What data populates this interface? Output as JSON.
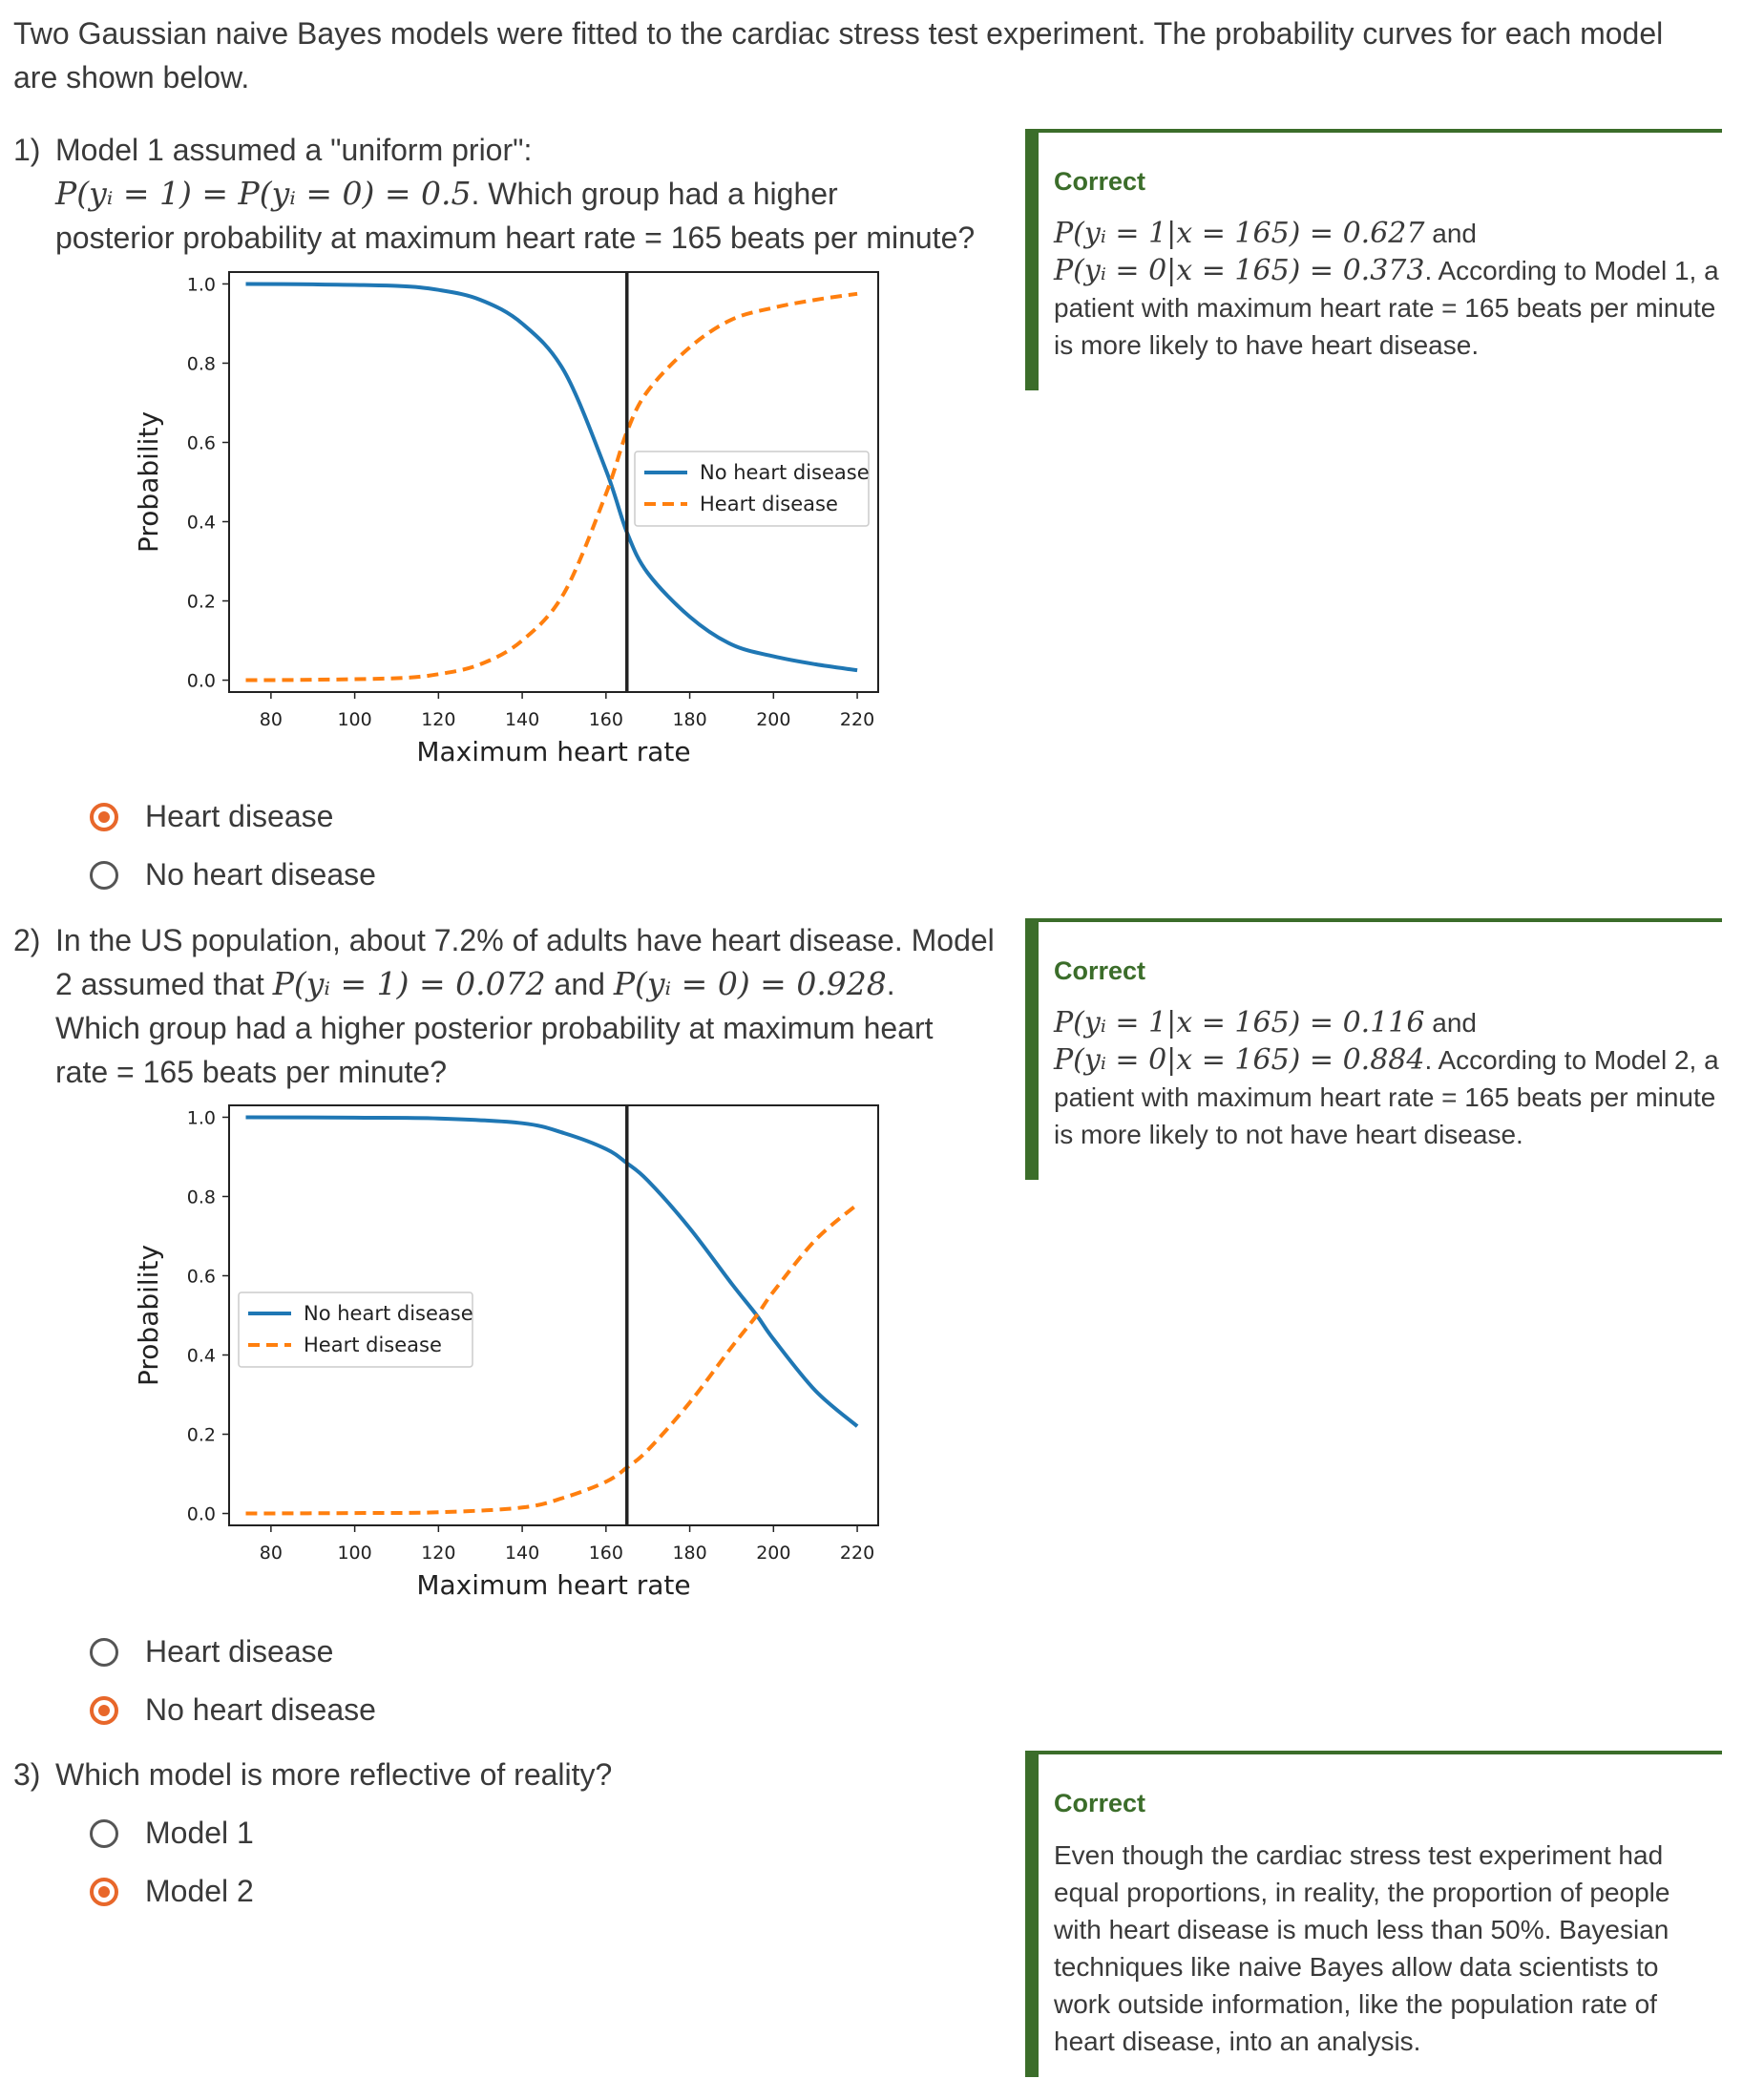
{
  "intro": "Two Gaussian naive Bayes models were fitted to the cardiac stress test experiment. The probability curves for each model are shown below.",
  "q1": {
    "number": "1)",
    "line1": "Model 1 assumed a \"uniform prior\":",
    "math1": "P(yᵢ = 1) = P(yᵢ = 0) = 0.5",
    "line2_rest": ". Which group had a higher",
    "line3": "posterior probability at maximum heart rate = 165 beats per minute?",
    "options": [
      {
        "label": "Heart disease",
        "selected": true
      },
      {
        "label": "No heart disease",
        "selected": false
      }
    ],
    "feedback": {
      "title": "Correct",
      "math_a": "P(yᵢ = 1|x = 165) = 0.627",
      "and": " and",
      "math_b": "P(yᵢ = 0|x = 165) = 0.373",
      "text": ". According to Model 1, a patient with maximum heart rate = 165 beats per minute is more likely to have heart disease."
    }
  },
  "q2": {
    "number": "2)",
    "line1": "In the US population, about 7.2% of adults have heart disease. Model",
    "line2_pre": "2 assumed that ",
    "math1": "P(yᵢ = 1) = 0.072",
    "and": " and ",
    "math2": "P(yᵢ = 0) = 0.928",
    "dot": ".",
    "line3": "Which group had a higher posterior probability at maximum heart",
    "line4": "rate = 165 beats per minute?",
    "options": [
      {
        "label": "Heart disease",
        "selected": false
      },
      {
        "label": "No heart disease",
        "selected": true
      }
    ],
    "feedback": {
      "title": "Correct",
      "math_a": "P(yᵢ = 1|x = 165) = 0.116",
      "and": " and",
      "math_b": "P(yᵢ = 0|x = 165) = 0.884",
      "text": ". According to Model 2, a patient with maximum heart rate = 165 beats per minute is more likely to not have heart disease."
    }
  },
  "q3": {
    "number": "3)",
    "line1": "Which model is more reflective of reality?",
    "options": [
      {
        "label": "Model 1",
        "selected": false
      },
      {
        "label": "Model 2",
        "selected": true
      }
    ],
    "feedback": {
      "title": "Correct",
      "text": "Even though the cardiac stress test experiment had equal proportions, in reality, the proportion of people with heart disease is much less than 50%. Bayesian techniques like naive Bayes allow data scientists to work outside information, like the population rate of heart disease, into an analysis."
    }
  },
  "colors": {
    "no_disease": "#1f77b4",
    "disease": "#ff7f0e",
    "correct": "#3b6d2a",
    "selected": "#e8672a"
  },
  "chart_data": [
    {
      "type": "line",
      "xlabel": "Maximum heart rate",
      "ylabel": "Probability",
      "xlim": [
        70,
        225
      ],
      "ylim": [
        -0.03,
        1.03
      ],
      "xticks": [
        80,
        100,
        120,
        140,
        160,
        180,
        200,
        220
      ],
      "yticks": [
        "0.0",
        "0.2",
        "0.4",
        "0.6",
        "0.8",
        "1.0"
      ],
      "vline": 165,
      "legend_position": "center-right",
      "x": [
        74,
        90,
        110,
        120,
        130,
        140,
        150,
        160,
        165,
        170,
        180,
        190,
        200,
        210,
        220
      ],
      "series": [
        {
          "name": "No heart disease",
          "style": "solid",
          "values": [
            1.0,
            0.999,
            0.995,
            0.985,
            0.96,
            0.9,
            0.78,
            0.53,
            0.373,
            0.27,
            0.16,
            0.09,
            0.06,
            0.04,
            0.025
          ]
        },
        {
          "name": "Heart disease",
          "style": "dashed",
          "values": [
            0.0,
            0.001,
            0.005,
            0.015,
            0.04,
            0.1,
            0.22,
            0.47,
            0.627,
            0.73,
            0.84,
            0.91,
            0.94,
            0.96,
            0.975
          ]
        }
      ]
    },
    {
      "type": "line",
      "xlabel": "Maximum heart rate",
      "ylabel": "Probability",
      "xlim": [
        70,
        225
      ],
      "ylim": [
        -0.03,
        1.03
      ],
      "xticks": [
        80,
        100,
        120,
        140,
        160,
        180,
        200,
        220
      ],
      "yticks": [
        "0.0",
        "0.2",
        "0.4",
        "0.6",
        "0.8",
        "1.0"
      ],
      "vline": 165,
      "legend_position": "center-left",
      "x": [
        74,
        100,
        120,
        140,
        150,
        160,
        165,
        170,
        180,
        190,
        196,
        200,
        210,
        220
      ],
      "series": [
        {
          "name": "No heart disease",
          "style": "solid",
          "values": [
            1.0,
            0.999,
            0.997,
            0.985,
            0.96,
            0.92,
            0.884,
            0.84,
            0.72,
            0.58,
            0.5,
            0.44,
            0.31,
            0.22
          ]
        },
        {
          "name": "Heart disease",
          "style": "dashed",
          "values": [
            0.0,
            0.001,
            0.003,
            0.015,
            0.04,
            0.08,
            0.116,
            0.16,
            0.28,
            0.42,
            0.5,
            0.56,
            0.69,
            0.78
          ]
        }
      ]
    }
  ]
}
